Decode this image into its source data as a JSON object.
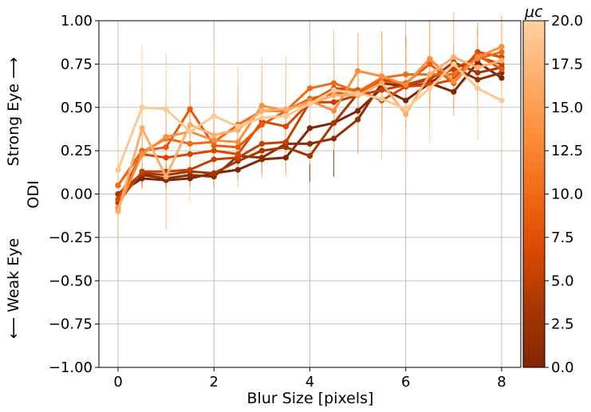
{
  "chart_data": {
    "type": "line",
    "xlabel": "Blur Size [pixels]",
    "ylabel": "ODI",
    "side_label_top": "Strong Eye ⟶",
    "side_label_bottom": "⟵ Weak Eye",
    "xlim": [
      -0.4,
      8.4
    ],
    "ylim": [
      -1.0,
      1.0
    ],
    "xticks": [
      "0",
      "2",
      "4",
      "6",
      "8"
    ],
    "yticks": [
      "1.00",
      "0.75",
      "0.50",
      "0.25",
      "0.00",
      "−0.25",
      "−0.50",
      "−0.75",
      "−1.00"
    ],
    "grid": true,
    "x": [
      0,
      0.5,
      1,
      1.5,
      2,
      2.5,
      3,
      3.5,
      4,
      4.5,
      5,
      5.5,
      6,
      6.5,
      7,
      7.5,
      8
    ],
    "colorbar": {
      "label": "μc",
      "range": [
        0.0,
        20.0
      ],
      "ticks": [
        "20.0",
        "17.5",
        "15.0",
        "12.5",
        "10.0",
        "7.5",
        "5.0",
        "2.5",
        "0.0"
      ],
      "colormap": [
        "#7f2704",
        "#a63603",
        "#d94801",
        "#f16913",
        "#fd8d3c",
        "#fdae6b",
        "#fdd0a2"
      ]
    },
    "series": [
      {
        "mu": 0.0,
        "color": "#7f2704",
        "values": [
          0.0,
          0.09,
          0.08,
          0.09,
          0.12,
          0.14,
          0.2,
          0.21,
          0.38,
          0.41,
          0.48,
          0.61,
          0.54,
          0.64,
          0.59,
          0.76,
          0.67
        ],
        "err": [
          0.04,
          0.05,
          0.05,
          0.05,
          0.06,
          0.06,
          0.08,
          0.09,
          0.12,
          0.15,
          0.2,
          0.15,
          0.15,
          0.12,
          0.1,
          0.1,
          0.08
        ]
      },
      {
        "mu": 2.0,
        "color": "#8f2d03",
        "values": [
          0.0,
          0.11,
          0.09,
          0.11,
          0.1,
          0.22,
          0.21,
          0.29,
          0.29,
          0.32,
          0.43,
          0.64,
          0.62,
          0.64,
          0.73,
          0.66,
          0.7
        ],
        "err": [
          0.05,
          0.05,
          0.05,
          0.05,
          0.06,
          0.07,
          0.1,
          0.12,
          0.18,
          0.22,
          0.2,
          0.15,
          0.15,
          0.12,
          0.1,
          0.1,
          0.08
        ]
      },
      {
        "mu": 4.0,
        "color": "#a63603",
        "values": [
          0.0,
          0.12,
          0.11,
          0.13,
          0.12,
          0.19,
          0.25,
          0.27,
          0.22,
          0.41,
          0.58,
          0.66,
          0.63,
          0.66,
          0.76,
          0.7,
          0.73
        ],
        "err": [
          0.05,
          0.06,
          0.06,
          0.06,
          0.07,
          0.08,
          0.1,
          0.12,
          0.15,
          0.18,
          0.18,
          0.15,
          0.15,
          0.12,
          0.1,
          0.1,
          0.08
        ]
      },
      {
        "mu": 6.0,
        "color": "#c44103",
        "values": [
          -0.05,
          0.13,
          0.13,
          0.14,
          0.2,
          0.21,
          0.29,
          0.3,
          0.53,
          0.53,
          0.57,
          0.6,
          0.63,
          0.67,
          0.72,
          0.79,
          0.75
        ],
        "err": [
          0.06,
          0.06,
          0.07,
          0.07,
          0.08,
          0.09,
          0.1,
          0.12,
          0.12,
          0.14,
          0.16,
          0.14,
          0.15,
          0.12,
          0.1,
          0.1,
          0.08
        ]
      },
      {
        "mu": 8.0,
        "color": "#d94801",
        "values": [
          -0.03,
          0.23,
          0.21,
          0.23,
          0.25,
          0.23,
          0.42,
          0.39,
          0.53,
          0.61,
          0.6,
          0.54,
          0.62,
          0.63,
          0.66,
          0.82,
          0.79
        ],
        "err": [
          0.08,
          0.1,
          0.12,
          0.12,
          0.12,
          0.12,
          0.12,
          0.14,
          0.15,
          0.16,
          0.18,
          0.18,
          0.18,
          0.15,
          0.12,
          0.12,
          0.1
        ]
      },
      {
        "mu": 10.0,
        "color": "#e65c0c",
        "values": [
          0.05,
          0.25,
          0.27,
          0.49,
          0.28,
          0.27,
          0.4,
          0.48,
          0.55,
          0.58,
          0.59,
          0.65,
          0.64,
          0.75,
          0.64,
          0.8,
          0.72
        ],
        "err": [
          0.1,
          0.12,
          0.15,
          0.16,
          0.15,
          0.15,
          0.15,
          0.16,
          0.16,
          0.18,
          0.18,
          0.2,
          0.2,
          0.18,
          0.15,
          0.15,
          0.12
        ]
      },
      {
        "mu": 12.0,
        "color": "#f16913",
        "values": [
          0.05,
          0.24,
          0.32,
          0.29,
          0.3,
          0.4,
          0.48,
          0.48,
          0.61,
          0.64,
          0.59,
          0.67,
          0.69,
          0.69,
          0.69,
          0.78,
          0.82
        ],
        "err": [
          0.12,
          0.15,
          0.18,
          0.2,
          0.2,
          0.18,
          0.18,
          0.2,
          0.2,
          0.2,
          0.2,
          0.22,
          0.22,
          0.2,
          0.18,
          0.18,
          0.15
        ]
      },
      {
        "mu": 14.0,
        "color": "#fd8d3c",
        "values": [
          -0.08,
          0.23,
          0.33,
          0.36,
          0.31,
          0.3,
          0.51,
          0.48,
          0.54,
          0.48,
          0.71,
          0.68,
          0.63,
          0.78,
          0.65,
          0.79,
          0.85
        ],
        "err": [
          0.15,
          0.2,
          0.22,
          0.25,
          0.25,
          0.22,
          0.22,
          0.22,
          0.22,
          0.22,
          0.22,
          0.25,
          0.25,
          0.22,
          0.2,
          0.2,
          0.18
        ]
      },
      {
        "mu": 17.0,
        "color": "#fdae6b",
        "values": [
          -0.1,
          0.38,
          0.1,
          0.4,
          0.34,
          0.37,
          0.48,
          0.49,
          0.52,
          0.57,
          0.57,
          0.64,
          0.46,
          0.69,
          0.79,
          0.73,
          0.77
        ],
        "err": [
          0.18,
          0.25,
          0.3,
          0.3,
          0.3,
          0.28,
          0.28,
          0.28,
          0.28,
          0.28,
          0.28,
          0.3,
          0.3,
          0.28,
          0.26,
          0.26,
          0.24
        ]
      },
      {
        "mu": 20.0,
        "color": "#fdc894",
        "values": [
          0.14,
          0.5,
          0.49,
          0.36,
          0.45,
          0.39,
          0.44,
          0.45,
          0.52,
          0.6,
          0.58,
          0.55,
          0.49,
          0.61,
          0.75,
          0.61,
          0.54
        ],
        "err": [
          0.2,
          0.36,
          0.32,
          0.4,
          0.4,
          0.35,
          0.35,
          0.35,
          0.35,
          0.35,
          0.35,
          0.35,
          0.35,
          0.32,
          0.3,
          0.3,
          0.28
        ]
      }
    ]
  }
}
